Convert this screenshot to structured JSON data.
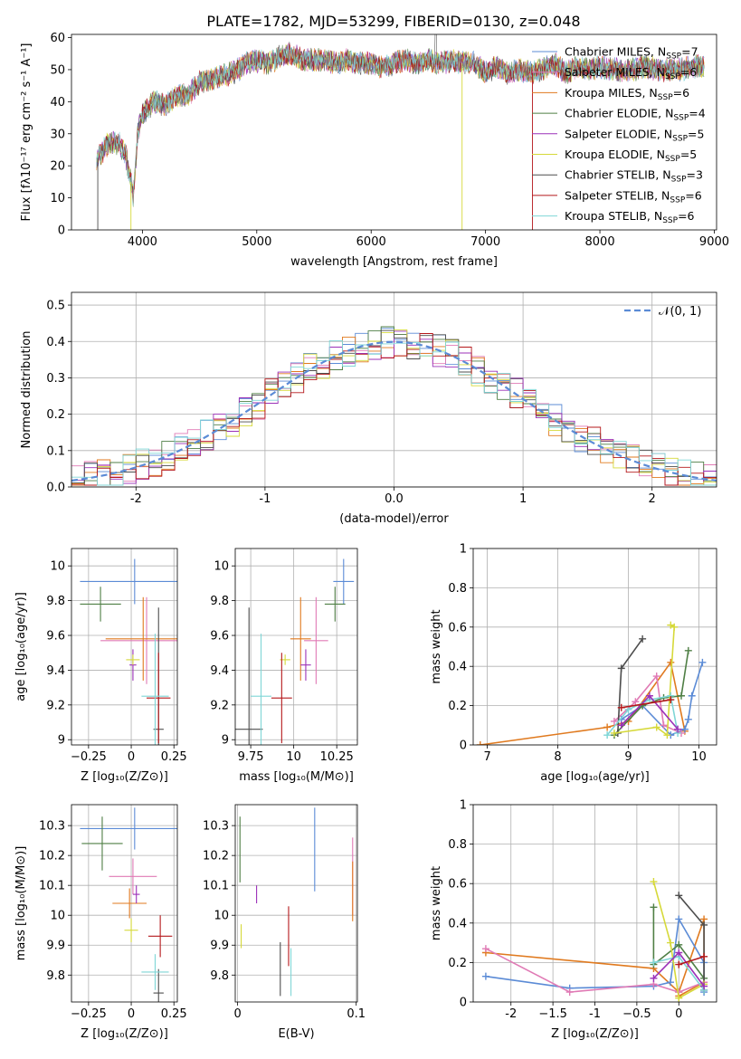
{
  "figure_title": "PLATE=1782, MJD=53299, FIBERID=0130, z=0.048",
  "chart_data": [
    {
      "id": "spectrum",
      "type": "line",
      "title": "PLATE=1782, MJD=53299, FIBERID=0130, z=0.048",
      "xlabel": "wavelength [Angstrom, rest frame]",
      "ylabel": "Flux [fλ10⁻¹⁷ erg cm⁻² s⁻¹ A⁻¹]",
      "xlim": [
        3380,
        9020
      ],
      "ylim": [
        0,
        61
      ],
      "xticks": [
        4000,
        5000,
        6000,
        7000,
        8000,
        9000
      ],
      "yticks": [
        0,
        10,
        20,
        30,
        40,
        50,
        60
      ],
      "grid": false,
      "legend_position": "top-right",
      "spectrum_knots": [
        [
          3600,
          22
        ],
        [
          3700,
          27
        ],
        [
          3800,
          27
        ],
        [
          3850,
          24
        ],
        [
          3900,
          15
        ],
        [
          3920,
          11
        ],
        [
          3960,
          30
        ],
        [
          4000,
          36
        ],
        [
          4100,
          40
        ],
        [
          4200,
          39
        ],
        [
          4300,
          42
        ],
        [
          4400,
          42
        ],
        [
          4500,
          46
        ],
        [
          4600,
          47
        ],
        [
          4700,
          48
        ],
        [
          4800,
          49
        ],
        [
          4900,
          52
        ],
        [
          5000,
          53
        ],
        [
          5100,
          52
        ],
        [
          5200,
          54
        ],
        [
          5300,
          55
        ],
        [
          5400,
          53
        ],
        [
          5500,
          53
        ],
        [
          5600,
          53
        ],
        [
          5700,
          52
        ],
        [
          5800,
          53
        ],
        [
          5900,
          52
        ],
        [
          6000,
          52
        ],
        [
          6100,
          51
        ],
        [
          6200,
          52
        ],
        [
          6300,
          53
        ],
        [
          6400,
          52
        ],
        [
          6500,
          53
        ],
        [
          6600,
          52
        ],
        [
          6700,
          53
        ],
        [
          6800,
          52
        ],
        [
          6900,
          52
        ],
        [
          7000,
          49
        ],
        [
          7100,
          51
        ],
        [
          7200,
          49
        ],
        [
          7300,
          50
        ],
        [
          7400,
          49
        ],
        [
          7500,
          50
        ],
        [
          7600,
          52
        ],
        [
          7700,
          49
        ],
        [
          7800,
          51
        ],
        [
          7900,
          50
        ],
        [
          8000,
          51
        ],
        [
          8100,
          50
        ],
        [
          8200,
          50
        ],
        [
          8300,
          50
        ],
        [
          8400,
          51
        ],
        [
          8500,
          50
        ],
        [
          8600,
          50
        ],
        [
          8700,
          50
        ],
        [
          8800,
          51
        ],
        [
          8900,
          51
        ]
      ],
      "series": [
        {
          "name": "Chabrier MILES, N_SSP=7",
          "color": "#5b8bd6"
        },
        {
          "name": "Salpeter MILES, N_SSP=6",
          "color": "#e07ab5"
        },
        {
          "name": "Kroupa MILES, N_SSP=6",
          "color": "#e07a1f"
        },
        {
          "name": "Chabrier ELODIE, N_SSP=4",
          "color": "#4f7f45"
        },
        {
          "name": "Salpeter ELODIE, N_SSP=5",
          "color": "#9b30b8"
        },
        {
          "name": "Kroupa ELODIE, N_SSP=5",
          "color": "#d6d93a"
        },
        {
          "name": "Chabrier STELIB, N_SSP=3",
          "color": "#4d4d4d"
        },
        {
          "name": "Salpeter STELIB, N_SSP=6",
          "color": "#b5181b"
        },
        {
          "name": "Kroupa STELIB, N_SSP=6",
          "color": "#7fd6d6"
        }
      ],
      "legend": [
        {
          "base": "Chabrier MILES, N",
          "sub": "SSP",
          "tail": "=7",
          "color": "#5b8bd6"
        },
        {
          "base": "Salpeter MILES, N",
          "sub": "SSP",
          "tail": "=6",
          "color": "#e07ab5"
        },
        {
          "base": "Kroupa MILES, N",
          "sub": "SSP",
          "tail": "=6",
          "color": "#e07a1f"
        },
        {
          "base": "Chabrier ELODIE, N",
          "sub": "SSP",
          "tail": "=4",
          "color": "#4f7f45"
        },
        {
          "base": "Salpeter ELODIE, N",
          "sub": "SSP",
          "tail": "=5",
          "color": "#9b30b8"
        },
        {
          "base": "Kroupa ELODIE, N",
          "sub": "SSP",
          "tail": "=5",
          "color": "#d6d93a"
        },
        {
          "base": "Chabrier STELIB, N",
          "sub": "SSP",
          "tail": "=3",
          "color": "#4d4d4d"
        },
        {
          "base": "Salpeter STELIB, N",
          "sub": "SSP",
          "tail": "=6",
          "color": "#b5181b"
        },
        {
          "base": "Kroupa STELIB, N",
          "sub": "SSP",
          "tail": "=6",
          "color": "#7fd6d6"
        }
      ]
    },
    {
      "id": "residuals",
      "type": "histogram",
      "xlabel": "(data-model)/error",
      "ylabel": "Normed distribution",
      "xlim": [
        -2.5,
        2.5
      ],
      "ylim": [
        0,
        0.535
      ],
      "xticks": [
        -2,
        -1,
        0,
        1,
        2
      ],
      "yticks": [
        0.0,
        0.1,
        0.2,
        0.3,
        0.4,
        0.5
      ],
      "grid": true,
      "legend_position": "top-right",
      "reference_curve": {
        "name": "N(0,1)",
        "label": "𝒩(0, 1)",
        "color": "#5b8bd6",
        "style": "dashed"
      },
      "bin_width": 0.1,
      "series_colors": [
        "#5b8bd6",
        "#e07ab5",
        "#e07a1f",
        "#4f7f45",
        "#9b30b8",
        "#d6d93a",
        "#4d4d4d",
        "#b5181b",
        "#7fd6d6"
      ]
    },
    {
      "id": "age_vs_Z",
      "type": "errorbar",
      "xlabel": "Z [log₁₀(Z/Z⊙)]",
      "ylabel": "age  [log₁₀(age/yr)]",
      "xlim": [
        -0.35,
        0.27
      ],
      "ylim": [
        8.97,
        10.1
      ],
      "xticks": [
        -0.25,
        0.0,
        0.25
      ],
      "yticks": [
        9.0,
        9.2,
        9.4,
        9.6,
        9.8,
        10.0
      ],
      "grid": true,
      "points": [
        {
          "color": "#5b8bd6",
          "x": 0.02,
          "xerr": 0.32,
          "y": 9.91,
          "yerr": 0.13
        },
        {
          "color": "#e07ab5",
          "x": 0.09,
          "xerr": 0.27,
          "y": 9.57,
          "yerr": 0.25
        },
        {
          "color": "#e07a1f",
          "x": 0.07,
          "xerr": 0.22,
          "y": 9.58,
          "yerr": 0.24
        },
        {
          "color": "#4f7f45",
          "x": -0.18,
          "xerr": 0.12,
          "y": 9.78,
          "yerr": 0.1
        },
        {
          "color": "#9b30b8",
          "x": 0.01,
          "xerr": 0.02,
          "y": 9.43,
          "yerr": 0.09
        },
        {
          "color": "#d6d93a",
          "x": 0.01,
          "xerr": 0.04,
          "y": 9.46,
          "yerr": 0.03
        },
        {
          "color": "#4d4d4d",
          "x": 0.16,
          "xerr": 0.03,
          "y": 9.06,
          "yerr": 0.7
        },
        {
          "color": "#b5181b",
          "x": 0.16,
          "xerr": 0.07,
          "y": 9.24,
          "yerr": 0.26
        },
        {
          "color": "#7fd6d6",
          "x": 0.14,
          "xerr": 0.08,
          "y": 9.25,
          "yerr": 0.36
        }
      ]
    },
    {
      "id": "age_vs_mass",
      "type": "errorbar",
      "xlabel": "mass [log₁₀(M/M⊙)]",
      "ylabel": "",
      "xlim": [
        9.66,
        10.37
      ],
      "ylim": [
        8.97,
        10.1
      ],
      "xticks": [
        9.75,
        10.0,
        10.25
      ],
      "yticks": [
        9.0,
        9.2,
        9.4,
        9.6,
        9.8,
        10.0
      ],
      "grid": true,
      "points": [
        {
          "color": "#5b8bd6",
          "x": 10.29,
          "xerr": 0.06,
          "y": 9.91,
          "yerr": 0.13
        },
        {
          "color": "#e07ab5",
          "x": 10.13,
          "xerr": 0.07,
          "y": 9.57,
          "yerr": 0.25
        },
        {
          "color": "#e07a1f",
          "x": 10.04,
          "xerr": 0.06,
          "y": 9.58,
          "yerr": 0.24
        },
        {
          "color": "#4f7f45",
          "x": 10.24,
          "xerr": 0.06,
          "y": 9.78,
          "yerr": 0.1
        },
        {
          "color": "#9b30b8",
          "x": 10.07,
          "xerr": 0.03,
          "y": 9.43,
          "yerr": 0.09
        },
        {
          "color": "#d6d93a",
          "x": 9.95,
          "xerr": 0.03,
          "y": 9.46,
          "yerr": 0.03
        },
        {
          "color": "#4d4d4d",
          "x": 9.74,
          "xerr": 0.08,
          "y": 9.06,
          "yerr": 0.7
        },
        {
          "color": "#b5181b",
          "x": 9.93,
          "xerr": 0.06,
          "y": 9.24,
          "yerr": 0.26
        },
        {
          "color": "#7fd6d6",
          "x": 9.81,
          "xerr": 0.06,
          "y": 9.25,
          "yerr": 0.36
        }
      ]
    },
    {
      "id": "weight_vs_age",
      "type": "line",
      "xlabel": "age  [log₁₀(age/yr)]",
      "ylabel": "mass weight",
      "xlim": [
        6.8,
        10.25
      ],
      "ylim": [
        0,
        1.0
      ],
      "xticks": [
        7,
        8,
        9,
        10
      ],
      "yticks": [
        0.0,
        0.2,
        0.4,
        0.6,
        0.8,
        1.0
      ],
      "grid": true,
      "series": [
        {
          "color": "#e07a1f",
          "x": [
            6.9,
            8.7,
            9.0,
            9.6,
            9.8
          ],
          "y": [
            0.0,
            0.09,
            0.12,
            0.42,
            0.07
          ]
        },
        {
          "color": "#5b8bd6",
          "x": [
            8.9,
            9.2,
            9.6,
            9.8,
            9.85,
            9.9,
            10.05
          ],
          "y": [
            0.13,
            0.2,
            0.05,
            0.08,
            0.13,
            0.25,
            0.42
          ]
        },
        {
          "color": "#e07ab5",
          "x": [
            8.8,
            9.1,
            9.4,
            9.5,
            9.75
          ],
          "y": [
            0.12,
            0.22,
            0.35,
            0.1,
            0.06
          ]
        },
        {
          "color": "#4f7f45",
          "x": [
            8.8,
            9.2,
            9.5,
            9.75,
            9.85
          ],
          "y": [
            0.05,
            0.2,
            0.24,
            0.25,
            0.48
          ]
        },
        {
          "color": "#4d4d4d",
          "x": [
            8.85,
            8.9,
            9.2
          ],
          "y": [
            0.06,
            0.39,
            0.54
          ]
        },
        {
          "color": "#d6d93a",
          "x": [
            8.8,
            9.4,
            9.55,
            9.65,
            9.6
          ],
          "y": [
            0.06,
            0.09,
            0.05,
            0.6,
            0.61
          ]
        },
        {
          "color": "#7fd6d6",
          "x": [
            8.7,
            9.0,
            9.3,
            9.6,
            9.7
          ],
          "y": [
            0.05,
            0.18,
            0.23,
            0.25,
            0.06
          ]
        },
        {
          "color": "#9b30b8",
          "x": [
            8.9,
            9.3,
            9.7
          ],
          "y": [
            0.1,
            0.25,
            0.08
          ]
        },
        {
          "color": "#b5181b",
          "x": [
            8.9,
            9.6
          ],
          "y": [
            0.19,
            0.23
          ]
        }
      ]
    },
    {
      "id": "mass_vs_Z",
      "type": "errorbar",
      "xlabel": "Z [log₁₀(Z/Z⊙)]",
      "ylabel": "mass [log₁₀(M/M⊙)]",
      "xlim": [
        -0.35,
        0.27
      ],
      "ylim": [
        9.71,
        10.37
      ],
      "xticks": [
        -0.25,
        0.0,
        0.25
      ],
      "yticks": [
        9.8,
        9.9,
        10.0,
        10.1,
        10.2,
        10.3
      ],
      "grid": true,
      "points": [
        {
          "color": "#5b8bd6",
          "x": 0.02,
          "xerr": 0.32,
          "y": 10.29,
          "yerr": 0.07
        },
        {
          "color": "#e07ab5",
          "x": 0.01,
          "xerr": 0.14,
          "y": 10.13,
          "yerr": 0.06
        },
        {
          "color": "#e07a1f",
          "x": -0.01,
          "xerr": 0.1,
          "y": 10.04,
          "yerr": 0.05
        },
        {
          "color": "#4f7f45",
          "x": -0.17,
          "xerr": 0.12,
          "y": 10.24,
          "yerr": 0.09
        },
        {
          "color": "#9b30b8",
          "x": 0.03,
          "xerr": 0.02,
          "y": 10.07,
          "yerr": 0.03
        },
        {
          "color": "#d6d93a",
          "x": 0.0,
          "xerr": 0.04,
          "y": 9.95,
          "yerr": 0.04
        },
        {
          "color": "#4d4d4d",
          "x": 0.16,
          "xerr": 0.03,
          "y": 9.74,
          "yerr": 0.08
        },
        {
          "color": "#b5181b",
          "x": 0.17,
          "xerr": 0.07,
          "y": 9.93,
          "yerr": 0.07
        },
        {
          "color": "#7fd6d6",
          "x": 0.14,
          "xerr": 0.08,
          "y": 9.81,
          "yerr": 0.06
        }
      ]
    },
    {
      "id": "mass_vs_ebv",
      "type": "errorbar",
      "xlabel": "E(B-V)",
      "ylabel": "",
      "xlim": [
        -0.002,
        0.101
      ],
      "ylim": [
        9.71,
        10.37
      ],
      "xticks": [
        0.0,
        0.1
      ],
      "yticks": [
        9.8,
        9.9,
        10.0,
        10.1,
        10.2,
        10.3
      ],
      "grid": true,
      "points": [
        {
          "color": "#5b8bd6",
          "x": 0.065,
          "xerr": 0,
          "y": 10.22,
          "yerr": 0.14
        },
        {
          "color": "#e07ab5",
          "x": 0.097,
          "xerr": 0,
          "y": 10.13,
          "yerr": 0.13
        },
        {
          "color": "#e07a1f",
          "x": 0.097,
          "xerr": 0,
          "y": 10.08,
          "yerr": 0.1
        },
        {
          "color": "#4f7f45",
          "x": 0.002,
          "xerr": 0,
          "y": 10.22,
          "yerr": 0.11
        },
        {
          "color": "#9b30b8",
          "x": 0.016,
          "xerr": 0,
          "y": 10.07,
          "yerr": 0.03
        },
        {
          "color": "#d6d93a",
          "x": 0.003,
          "xerr": 0,
          "y": 9.93,
          "yerr": 0.04
        },
        {
          "color": "#4d4d4d",
          "x": 0.036,
          "xerr": 0,
          "y": 9.82,
          "yerr": 0.09
        },
        {
          "color": "#b5181b",
          "x": 0.043,
          "xerr": 0,
          "y": 9.93,
          "yerr": 0.1
        },
        {
          "color": "#7fd6d6",
          "x": 0.045,
          "xerr": 0,
          "y": 9.81,
          "yerr": 0.08
        }
      ]
    },
    {
      "id": "weight_vs_Z",
      "type": "line",
      "xlabel": "Z [log₁₀(Z/Z⊙)]",
      "ylabel": "mass weight",
      "xlim": [
        -2.45,
        0.45
      ],
      "ylim": [
        0,
        1.0
      ],
      "xticks": [
        -2.0,
        -1.5,
        -1.0,
        -0.5,
        0.0
      ],
      "yticks": [
        0.0,
        0.2,
        0.4,
        0.6,
        0.8,
        1.0
      ],
      "grid": true,
      "series": [
        {
          "color": "#e07a1f",
          "x": [
            -2.3,
            -0.3,
            0.0,
            0.3,
            0.3,
            0.0
          ],
          "y": [
            0.25,
            0.17,
            0.05,
            0.42,
            0.1,
            0.03
          ]
        },
        {
          "color": "#5b8bd6",
          "x": [
            -2.3,
            -1.3,
            -0.3,
            -0.1,
            0.0,
            0.3,
            0.3
          ],
          "y": [
            0.13,
            0.07,
            0.08,
            0.1,
            0.42,
            0.2,
            0.05
          ]
        },
        {
          "color": "#e07ab5",
          "x": [
            -2.3,
            -1.3,
            -0.3,
            0.0,
            0.3
          ],
          "y": [
            0.27,
            0.05,
            0.09,
            0.05,
            0.1
          ]
        },
        {
          "color": "#4f7f45",
          "x": [
            -0.3,
            -0.3,
            0.0,
            0.3
          ],
          "y": [
            0.48,
            0.19,
            0.29,
            0.12
          ]
        },
        {
          "color": "#4d4d4d",
          "x": [
            0.0,
            0.3,
            0.3
          ],
          "y": [
            0.54,
            0.39,
            0.06
          ]
        },
        {
          "color": "#d6d93a",
          "x": [
            -0.3,
            -0.1,
            0.0,
            0.3
          ],
          "y": [
            0.61,
            0.3,
            0.02,
            0.09
          ]
        },
        {
          "color": "#7fd6d6",
          "x": [
            -0.3,
            0.0,
            0.3
          ],
          "y": [
            0.2,
            0.23,
            0.06
          ]
        },
        {
          "color": "#9b30b8",
          "x": [
            -0.3,
            0.0,
            0.3
          ],
          "y": [
            0.12,
            0.25,
            0.08
          ]
        },
        {
          "color": "#b5181b",
          "x": [
            0.0,
            0.3
          ],
          "y": [
            0.19,
            0.23
          ]
        }
      ]
    }
  ]
}
